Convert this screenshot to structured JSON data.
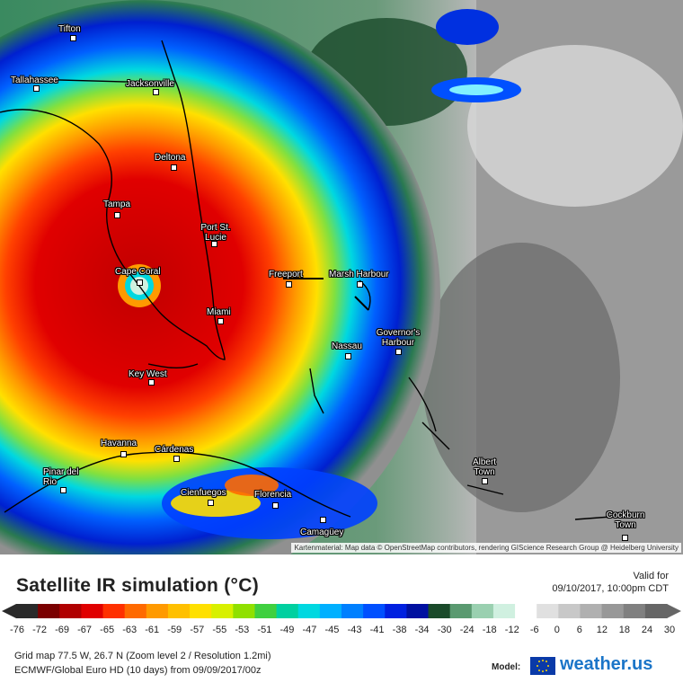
{
  "title": "Satellite IR simulation (°C)",
  "valid_label": "Valid for",
  "valid_time": "09/10/2017, 10:00pm CDT",
  "colorbar": {
    "ticks": [
      "-76",
      "-72",
      "-69",
      "-67",
      "-65",
      "-63",
      "-61",
      "-59",
      "-57",
      "-55",
      "-53",
      "-51",
      "-49",
      "-47",
      "-45",
      "-43",
      "-41",
      "-38",
      "-34",
      "-30",
      "-24",
      "-18",
      "-12",
      "-6",
      "0",
      "6",
      "12",
      "18",
      "24",
      "30"
    ],
    "stops": [
      "#2a2a2a",
      "#7a0000",
      "#b00000",
      "#e00000",
      "#ff3000",
      "#ff6a00",
      "#ff9a00",
      "#ffc000",
      "#ffe000",
      "#d8f000",
      "#90e000",
      "#40d040",
      "#00d0a0",
      "#00d8e0",
      "#00b0ff",
      "#0080ff",
      "#0050ff",
      "#0020e0",
      "#0010a0",
      "#1a4a2a",
      "#5a9a70",
      "#9ad0b0",
      "#d0f0e0",
      "#ffffff",
      "#e0e0e0",
      "#c8c8c8",
      "#b0b0b0",
      "#989898",
      "#808080",
      "#666666"
    ]
  },
  "grid_info": "Grid map 77.5 W, 26.7 N (Zoom level 2 / Resolution 1.2mi)",
  "model_info": "ECMWF/Global Euro HD (10 days) from 09/09/2017/00z",
  "model_label": "Model:",
  "brand": "weather.us",
  "attribution": "Kartenmaterial: Map data © OpenStreetMap contributors, rendering GIScience Research Group @ Heidelberg University",
  "cities": [
    {
      "name": "Tifton"
    },
    {
      "name": "Tallahassee"
    },
    {
      "name": "Jacksonville"
    },
    {
      "name": "Deltona"
    },
    {
      "name": "Tampa"
    },
    {
      "name": "Port St. Lucie"
    },
    {
      "name": "Cape Coral"
    },
    {
      "name": "Freeport"
    },
    {
      "name": "Marsh Harbour"
    },
    {
      "name": "Miami"
    },
    {
      "name": "Nassau"
    },
    {
      "name": "Governor's Harbour"
    },
    {
      "name": "Key West"
    },
    {
      "name": "Havanna"
    },
    {
      "name": "Cárdenas"
    },
    {
      "name": "Pinar del Rio"
    },
    {
      "name": "Cienfuegos"
    },
    {
      "name": "Florencia"
    },
    {
      "name": "Camagüey"
    },
    {
      "name": "Albert Town"
    },
    {
      "name": "Cockburn Town"
    }
  ]
}
